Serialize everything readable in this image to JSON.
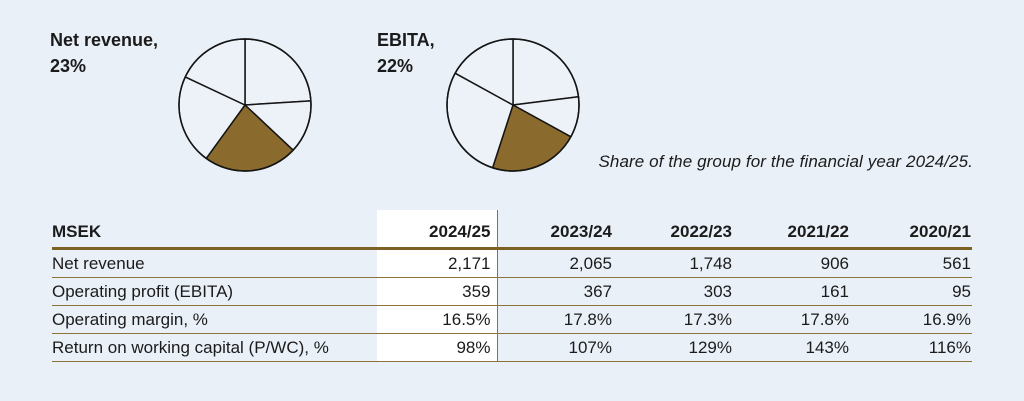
{
  "caption": "Share of the group for the financial year 2024/25.",
  "colors": {
    "background": "#e9f0f8",
    "pie_slice_fill": "#edf2f9",
    "pie_highlight_fill": "#8a6b2d",
    "pie_stroke": "#151515",
    "rule_thick": "#7c6124",
    "rule_thin": "#8d7239",
    "text": "#1b1b1b",
    "highlight_column_bg": "#ffffff"
  },
  "chart_data": [
    {
      "type": "pie",
      "title": "Net revenue, 23%",
      "label_line1": "Net revenue,",
      "label_line2": "23%",
      "values": [
        24,
        13,
        23,
        22,
        18
      ],
      "highlight_index": 2,
      "highlight_value_pct": 23,
      "start_angle": "top",
      "direction": "clockwise",
      "legend": "none"
    },
    {
      "type": "pie",
      "title": "EBITA, 22%",
      "label_line1": "EBITA,",
      "label_line2": "22%",
      "values": [
        23,
        10,
        22,
        28,
        17
      ],
      "highlight_index": 2,
      "highlight_value_pct": 22,
      "start_angle": "top",
      "direction": "clockwise",
      "legend": "none"
    },
    {
      "type": "table",
      "columns": [
        "MSEK",
        "2024/25",
        "2023/24",
        "2022/23",
        "2021/22",
        "2020/21"
      ],
      "highlight_column_index": 1,
      "rows": [
        [
          "Net revenue",
          "2,171",
          "2,065",
          "1,748",
          "906",
          "561"
        ],
        [
          "Operating profit (EBITA)",
          "359",
          "367",
          "303",
          "161",
          "95"
        ],
        [
          "Operating margin, %",
          "16.5%",
          "17.8%",
          "17.3%",
          "17.8%",
          "16.9%"
        ],
        [
          "Return on working capital (P/WC), %",
          "98%",
          "107%",
          "129%",
          "143%",
          "116%"
        ]
      ]
    }
  ]
}
